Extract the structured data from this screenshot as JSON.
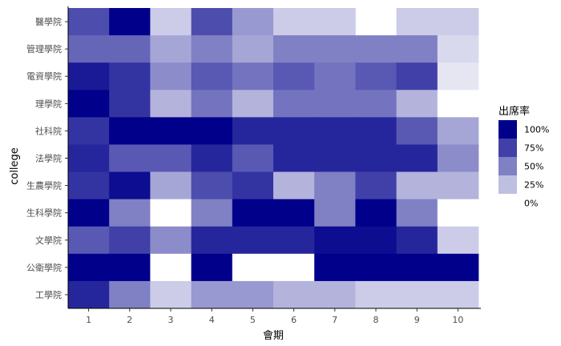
{
  "chart_data": {
    "type": "heatmap",
    "xlabel": "會期",
    "ylabel": "college",
    "x_categories": [
      "1",
      "2",
      "3",
      "4",
      "5",
      "6",
      "7",
      "8",
      "9",
      "10"
    ],
    "y_categories": [
      "醫學院",
      "管理學院",
      "電資學院",
      "理學院",
      "社科院",
      "法學院",
      "生農學院",
      "生科學院",
      "文學院",
      "公衛學院",
      "工學院"
    ],
    "values": [
      [
        0.7,
        1.0,
        0.2,
        0.7,
        0.4,
        0.2,
        0.2,
        null,
        0.2,
        0.2
      ],
      [
        0.6,
        0.6,
        0.35,
        0.5,
        0.35,
        0.5,
        0.5,
        0.5,
        0.5,
        0.15
      ],
      [
        0.9,
        0.8,
        0.45,
        0.65,
        0.55,
        0.65,
        0.55,
        0.65,
        0.75,
        0.1
      ],
      [
        1.0,
        0.8,
        0.3,
        0.55,
        0.3,
        0.55,
        0.55,
        0.55,
        0.3,
        0.0
      ],
      [
        0.8,
        1.0,
        1.0,
        1.0,
        0.85,
        0.85,
        0.85,
        0.85,
        0.65,
        0.35
      ],
      [
        0.85,
        0.65,
        0.65,
        0.85,
        0.65,
        0.85,
        0.85,
        0.85,
        0.85,
        0.45
      ],
      [
        0.8,
        0.95,
        0.35,
        0.7,
        0.8,
        0.3,
        0.5,
        0.75,
        0.3,
        0.3
      ],
      [
        1.0,
        0.5,
        0.0,
        0.5,
        1.0,
        1.0,
        0.5,
        1.0,
        0.5,
        0.0
      ],
      [
        0.65,
        0.75,
        0.45,
        0.85,
        0.85,
        0.85,
        0.95,
        0.95,
        0.85,
        0.2
      ],
      [
        1.0,
        1.0,
        0.0,
        1.0,
        0.0,
        0.0,
        1.0,
        1.0,
        1.0,
        1.0
      ],
      [
        0.85,
        0.5,
        0.2,
        0.4,
        0.4,
        0.3,
        0.3,
        0.2,
        0.2,
        0.2
      ]
    ],
    "color_scale": {
      "low_color": "#ffffff",
      "high_color": "#00008b",
      "range": [
        0,
        1
      ]
    },
    "legend": {
      "title": "出席率",
      "placement": "right",
      "entries": [
        {
          "label": "100%",
          "value": 1.0
        },
        {
          "label": "75%",
          "value": 0.75
        },
        {
          "label": "50%",
          "value": 0.5
        },
        {
          "label": "25%",
          "value": 0.25
        },
        {
          "label": "0%",
          "value": 0.0
        }
      ]
    },
    "grid": false
  }
}
